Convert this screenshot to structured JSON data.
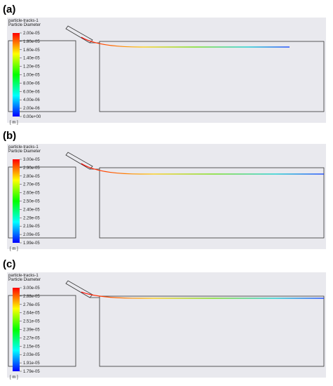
{
  "panels": [
    {
      "label": "(a)",
      "legend_title": [
        "particle-tracks-1",
        "Particle Diameter"
      ],
      "ticks": [
        "2.00e-05",
        "1.80e-05",
        "1.60e-05",
        "1.40e-05",
        "1.20e-05",
        "1.00e-05",
        "8.00e-06",
        "6.00e-06",
        "4.00e-06",
        "2.00e-06",
        "0.00e+00"
      ],
      "unit": "[ m ]"
    },
    {
      "label": "(b)",
      "legend_title": [
        "particle-tracks-1",
        "Particle Diameter"
      ],
      "ticks": [
        "3.00e-05",
        "2.90e-05",
        "2.80e-05",
        "2.70e-05",
        "2.60e-05",
        "2.50e-05",
        "2.40e-05",
        "2.29e-05",
        "2.19e-05",
        "2.09e-05",
        "1.99e-05"
      ],
      "unit": "[ m ]"
    },
    {
      "label": "(c)",
      "legend_title": [
        "particle-tracks-1",
        "Particle Diameter"
      ],
      "ticks": [
        "3.00e-05",
        "2.88e-05",
        "2.76e-05",
        "2.64e-05",
        "2.51e-05",
        "2.39e-05",
        "2.27e-05",
        "2.15e-05",
        "2.03e-05",
        "1.91e-05",
        "1.79e-05"
      ],
      "unit": "[ m ]"
    }
  ]
}
